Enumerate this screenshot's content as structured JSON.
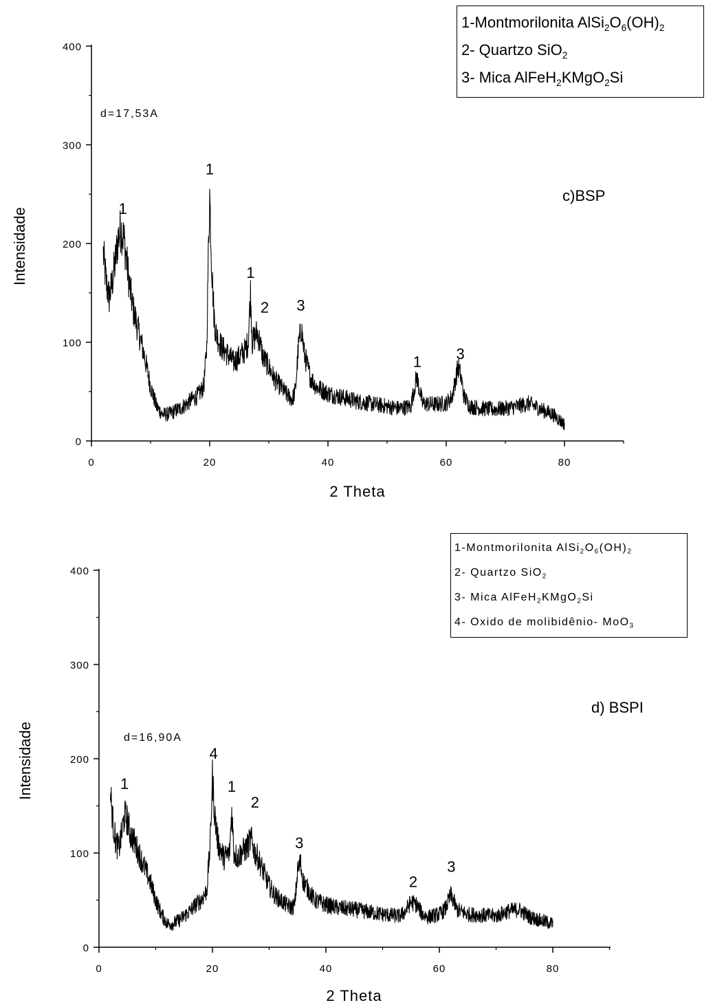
{
  "panels": [
    {
      "id": "bsp",
      "panel_label": "c)BSP",
      "d_spacing": "d=17,53A",
      "legend": [
        {
          "text": "1-Montmorilonita AlSi",
          "parts": [
            "1-Montmorilonita AlSi",
            "2",
            "O",
            "6",
            "(OH)",
            "2"
          ]
        },
        {
          "parts": [
            "2- Quartzo SiO",
            "2"
          ]
        },
        {
          "parts": [
            "3- Mica AlFeH",
            "2",
            "KMgO",
            "2",
            "Si"
          ]
        }
      ],
      "xlabel": "2 Theta",
      "ylabel": "Intensidade",
      "xticks": [
        "0",
        "20",
        "40",
        "60",
        "80"
      ],
      "yticks": [
        "0",
        "100",
        "200",
        "300",
        "400"
      ],
      "peak_labels": [
        {
          "text": "1",
          "x": 5.3,
          "y": 230
        },
        {
          "text": "1",
          "x": 20.0,
          "y": 270
        },
        {
          "text": "1",
          "x": 26.9,
          "y": 165
        },
        {
          "text": "2",
          "x": 29.3,
          "y": 130
        },
        {
          "text": "3",
          "x": 35.4,
          "y": 132
        },
        {
          "text": "1",
          "x": 55.1,
          "y": 75
        },
        {
          "text": "3",
          "x": 62.4,
          "y": 83
        }
      ]
    },
    {
      "id": "bspi",
      "panel_label": "d) BSPI",
      "d_spacing": "d=16,90A",
      "legend": [
        {
          "parts": [
            "1-Montmorilonita AlSi",
            "2",
            "O",
            "6",
            "(OH)",
            "2"
          ]
        },
        {
          "parts": [
            "2- Quartzo SiO",
            "2"
          ]
        },
        {
          "parts": [
            "3- Mica AlFeH",
            "2",
            "KMgO",
            "2",
            "Si"
          ]
        },
        {
          "parts": [
            "4- Oxido de molibidênio- MoO",
            "3"
          ]
        }
      ],
      "xlabel": "2 Theta",
      "ylabel": "Intensidade",
      "xticks": [
        "0",
        "20",
        "40",
        "60",
        "80"
      ],
      "yticks": [
        "0",
        "100",
        "200",
        "300",
        "400"
      ],
      "peak_labels": [
        {
          "text": "1",
          "x": 4.5,
          "y": 168
        },
        {
          "text": "4",
          "x": 20.2,
          "y": 200
        },
        {
          "text": "1",
          "x": 23.4,
          "y": 165
        },
        {
          "text": "2",
          "x": 27.5,
          "y": 148
        },
        {
          "text": "3",
          "x": 35.3,
          "y": 105
        },
        {
          "text": "2",
          "x": 55.4,
          "y": 64
        },
        {
          "text": "3",
          "x": 62.1,
          "y": 80
        }
      ]
    }
  ],
  "chart_data": [
    {
      "type": "line",
      "title": "c)BSP",
      "xlabel": "2 Theta",
      "ylabel": "Intensidade",
      "xlim": [
        0,
        90
      ],
      "ylim": [
        0,
        400
      ],
      "series": [
        {
          "x": [
            2,
            2.5,
            3,
            3.5,
            4,
            4.5,
            5,
            5.5,
            6,
            6.5,
            7,
            8,
            9,
            10,
            11,
            12,
            13,
            14,
            15,
            16,
            17,
            18,
            19,
            19.5,
            19.8,
            20,
            20.3,
            20.7,
            21,
            22,
            23,
            24,
            25,
            26,
            26.5,
            26.9,
            27.2,
            28,
            28.5,
            29,
            30,
            31,
            32,
            33,
            34,
            34.5,
            35,
            35.5,
            36,
            37,
            38,
            40,
            42,
            45,
            50,
            52,
            54,
            55,
            56,
            58,
            60,
            61,
            62,
            62.5,
            63,
            64,
            66,
            68,
            70,
            72,
            74,
            76,
            78,
            80
          ],
          "y": [
            190,
            160,
            145,
            160,
            180,
            205,
            215,
            205,
            180,
            155,
            135,
            110,
            85,
            55,
            35,
            27,
            27,
            30,
            33,
            37,
            42,
            46,
            55,
            95,
            200,
            250,
            185,
            130,
            110,
            95,
            88,
            80,
            85,
            92,
            100,
            150,
            100,
            110,
            100,
            85,
            75,
            62,
            55,
            47,
            42,
            52,
            95,
            115,
            88,
            65,
            55,
            48,
            45,
            40,
            35,
            33,
            35,
            65,
            38,
            37,
            38,
            45,
            75,
            65,
            45,
            35,
            33,
            32,
            33,
            35,
            38,
            32,
            27,
            17
          ]
        }
      ]
    },
    {
      "type": "line",
      "title": "d) BSPI",
      "xlabel": "2 Theta",
      "ylabel": "Intensidade",
      "xlim": [
        0,
        90
      ],
      "ylim": [
        0,
        400
      ],
      "series": [
        {
          "x": [
            2,
            2.5,
            3,
            3.5,
            4,
            4.5,
            5,
            5.5,
            6,
            7,
            8,
            9,
            10,
            11,
            12,
            13,
            14,
            15,
            16,
            17,
            18,
            19,
            19.6,
            20,
            20.4,
            21,
            22,
            23,
            23.4,
            23.8,
            24.5,
            25,
            26,
            26.8,
            27.5,
            28,
            29,
            30,
            31,
            32,
            33,
            34,
            34.5,
            35,
            35.5,
            36,
            37,
            38,
            40,
            42,
            45,
            50,
            53,
            54,
            55,
            56,
            57,
            58,
            60,
            61,
            62,
            62.5,
            63,
            65,
            70,
            72,
            74,
            76,
            78,
            80
          ],
          "y": [
            165,
            130,
            110,
            105,
            120,
            140,
            135,
            120,
            115,
            100,
            85,
            70,
            50,
            35,
            25,
            25,
            28,
            33,
            38,
            45,
            50,
            60,
            110,
            180,
            140,
            110,
            95,
            100,
            145,
            100,
            95,
            100,
            105,
            115,
            100,
            95,
            80,
            65,
            55,
            50,
            45,
            42,
            45,
            80,
            90,
            70,
            60,
            50,
            45,
            42,
            40,
            35,
            33,
            38,
            48,
            45,
            35,
            32,
            35,
            40,
            55,
            50,
            40,
            35,
            33,
            38,
            40,
            32,
            28,
            25
          ]
        }
      ]
    }
  ]
}
